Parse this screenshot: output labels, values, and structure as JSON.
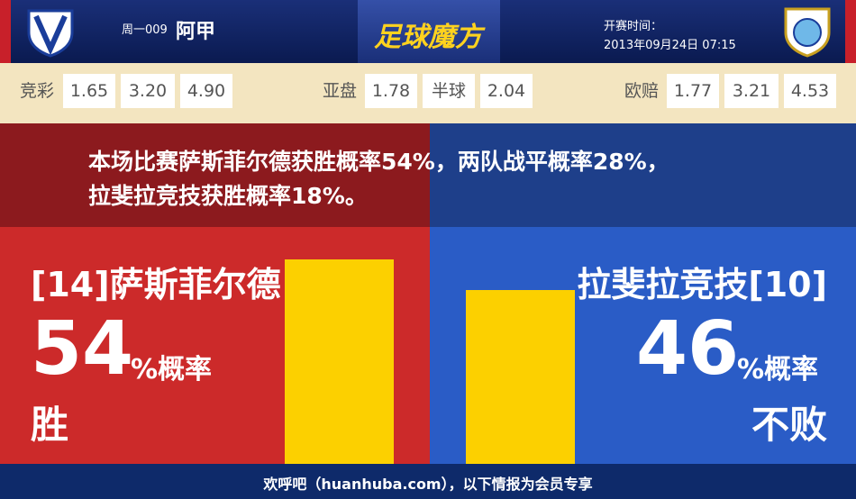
{
  "header": {
    "match_no": "周一009",
    "league": "阿甲",
    "brand": "足球魔方",
    "kickoff_label": "开赛时间：",
    "kickoff_time": "2013年09月24日 07:15"
  },
  "odds": [
    {
      "label": "竞彩",
      "values": [
        "1.65",
        "3.20",
        "4.90"
      ]
    },
    {
      "label": "亚盘",
      "values": [
        "1.78",
        "半球",
        "2.04"
      ]
    },
    {
      "label": "欧赔",
      "values": [
        "1.77",
        "3.21",
        "4.53"
      ]
    }
  ],
  "summary": [
    "本场比赛萨斯菲尔德获胜概率54%，两队战平概率28%，",
    "拉斐拉竞技获胜概率18%。"
  ],
  "home": {
    "name": "[14]萨斯菲尔德",
    "percent": 54,
    "unit": "%概率",
    "verdict": "胜"
  },
  "away": {
    "name": "拉斐拉竞技[10]",
    "percent": 46,
    "unit": "%概率",
    "verdict": "不败"
  },
  "footer": "欢呼吧（huanhuba.com），以下情报为会员专享"
}
